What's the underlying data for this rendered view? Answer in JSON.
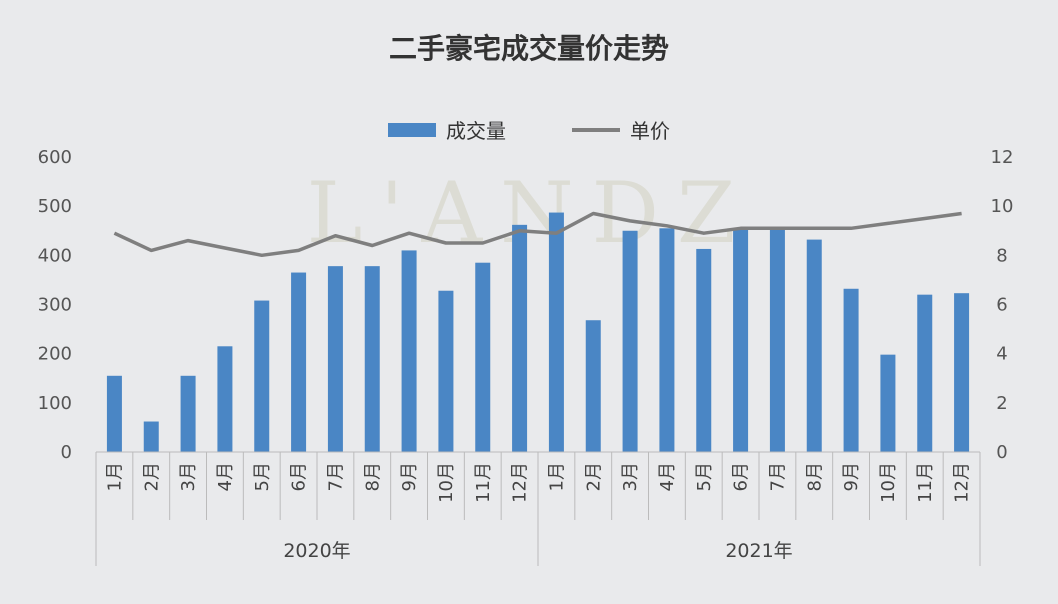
{
  "chart_data": {
    "type": "bar",
    "title": "二手豪宅成交量价走势",
    "watermark": "L'ANDZ",
    "groups": [
      {
        "label": "2020年",
        "categories": [
          "1月",
          "2月",
          "3月",
          "4月",
          "5月",
          "6月",
          "7月",
          "8月",
          "9月",
          "10月",
          "11月",
          "12月"
        ]
      },
      {
        "label": "2021年",
        "categories": [
          "1月",
          "2月",
          "3月",
          "4月",
          "5月",
          "6月",
          "7月",
          "8月",
          "9月",
          "10月",
          "11月",
          "12月"
        ]
      }
    ],
    "series": [
      {
        "name": "成交量",
        "type": "bar",
        "axis": "left",
        "color": "#4a86c5",
        "values": [
          155,
          62,
          155,
          215,
          308,
          365,
          378,
          378,
          410,
          328,
          385,
          462,
          487,
          268,
          450,
          455,
          413,
          452,
          452,
          432,
          332,
          198,
          320,
          323
        ]
      },
      {
        "name": "单价",
        "type": "line",
        "axis": "right",
        "color": "#7f7f7f",
        "values": [
          8.9,
          8.2,
          8.6,
          8.3,
          8.0,
          8.2,
          8.8,
          8.4,
          8.9,
          8.5,
          8.5,
          9.0,
          8.9,
          9.7,
          9.4,
          9.2,
          8.9,
          9.1,
          9.1,
          9.1,
          9.1,
          9.3,
          9.5,
          9.7
        ]
      }
    ],
    "yaxis_left": {
      "min": 0,
      "max": 600,
      "ticks": [
        "0",
        "100",
        "200",
        "300",
        "400",
        "500",
        "600"
      ]
    },
    "yaxis_right": {
      "min": 0,
      "max": 12,
      "ticks": [
        "0",
        "2",
        "4",
        "6",
        "8",
        "10",
        "12"
      ]
    },
    "legend_position": "top-center",
    "grid": false
  }
}
